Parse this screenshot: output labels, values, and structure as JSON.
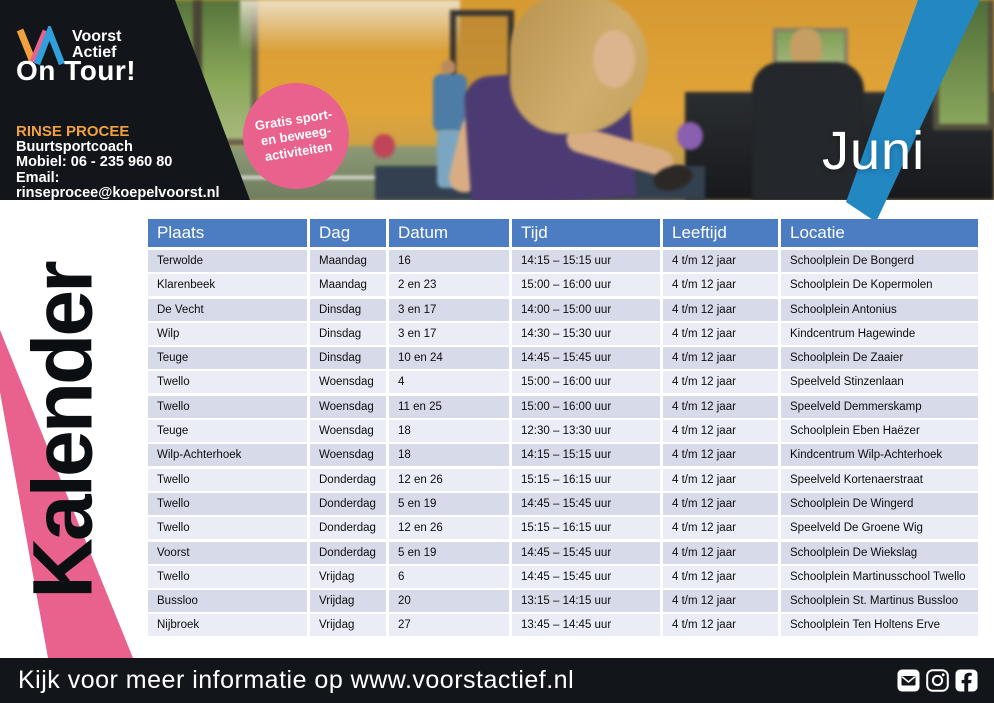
{
  "colors": {
    "panel": "#12161B",
    "orange": "#F0A03C",
    "pink": "#E9618D",
    "logo_blue": "#2FA0DC",
    "stripe_blue": "#2387C2",
    "header_blue": "#4C7CC1",
    "row_dark": "#D7DAE9",
    "row_light": "#EAECF6",
    "wall_orange": "#DA9C35"
  },
  "brand": {
    "logo_line1": "Voorst",
    "logo_line2": "Actief",
    "tour_label": "On Tour!",
    "contact_name": "RINSE PROCEE",
    "contact_role": "Buurtsportcoach",
    "contact_mobile": "Mobiel: 06 - 235 960 80",
    "contact_email": "Email: rinseprocee@koepelvoorst.nl"
  },
  "badge": {
    "line1": "Gratis sport-",
    "line2": "en beweeg-",
    "line3": "activiteiten"
  },
  "month_label": "Juni",
  "side_label": "Kalender",
  "schedule": {
    "columns": [
      "Plaats",
      "Dag",
      "Datum",
      "Tijd",
      "Leeftijd",
      "Locatie"
    ],
    "rows": [
      [
        "Terwolde",
        "Maandag",
        "16",
        "14:15 – 15:15 uur",
        "4 t/m 12 jaar",
        "Schoolplein De Bongerd"
      ],
      [
        "Klarenbeek",
        "Maandag",
        "2 en 23",
        "15:00 – 16:00 uur",
        "4 t/m 12 jaar",
        "Schoolplein De Kopermolen"
      ],
      [
        "De Vecht",
        "Dinsdag",
        "3 en 17",
        "14:00 – 15:00 uur",
        "4 t/m 12 jaar",
        "Schoolplein Antonius"
      ],
      [
        "Wilp",
        "Dinsdag",
        "3 en 17",
        "14:30 – 15:30 uur",
        "4 t/m 12 jaar",
        "Kindcentrum Hagewinde"
      ],
      [
        "Teuge",
        "Dinsdag",
        "10 en 24",
        "14:45 – 15:45 uur",
        "4 t/m 12 jaar",
        "Schoolplein De Zaaier"
      ],
      [
        "Twello",
        "Woensdag",
        "4",
        "15:00 – 16:00 uur",
        "4 t/m 12 jaar",
        "Speelveld Stinzenlaan"
      ],
      [
        "Twello",
        "Woensdag",
        "11 en 25",
        "15:00 – 16:00 uur",
        "4 t/m 12 jaar",
        "Speelveld Demmerskamp"
      ],
      [
        "Teuge",
        "Woensdag",
        "18",
        "12:30 – 13:30 uur",
        "4 t/m 12 jaar",
        "Schoolplein Eben Haëzer"
      ],
      [
        "Wilp-Achterhoek",
        "Woensdag",
        "18",
        "14:15 – 15:15 uur",
        "4 t/m 12 jaar",
        "Kindcentrum Wilp-Achterhoek"
      ],
      [
        "Twello",
        "Donderdag",
        "12 en 26",
        "15:15 – 16:15 uur",
        "4 t/m 12 jaar",
        "Speelveld Kortenaerstraat"
      ],
      [
        "Twello",
        "Donderdag",
        "5 en 19",
        "14:45 – 15:45 uur",
        "4 t/m 12 jaar",
        "Schoolplein De Wingerd"
      ],
      [
        "Twello",
        "Donderdag",
        "12 en 26",
        "15:15 – 16:15 uur",
        "4 t/m 12 jaar",
        "Speelveld De Groene Wig"
      ],
      [
        "Voorst",
        "Donderdag",
        "5 en 19",
        "14:45 – 15:45 uur",
        "4 t/m 12 jaar",
        "Schoolplein De Wiekslag"
      ],
      [
        "Twello",
        "Vrijdag",
        "6",
        "14:45 – 15:45 uur",
        "4 t/m 12 jaar",
        "Schoolplein Martinusschool Twello"
      ],
      [
        "Bussloo",
        "Vrijdag",
        "20",
        "13:15 – 14:15 uur",
        "4 t/m 12 jaar",
        "Schoolplein St. Martinus Bussloo"
      ],
      [
        "Nijbroek",
        "Vrijdag",
        "27",
        "13:45 – 14:45 uur",
        "4 t/m 12 jaar",
        "Schoolplein Ten Holtens Erve"
      ]
    ]
  },
  "footer": {
    "message": "Kijk voor meer informatie op www.voorstactief.nl",
    "icons": [
      "email",
      "instagram",
      "facebook"
    ]
  }
}
